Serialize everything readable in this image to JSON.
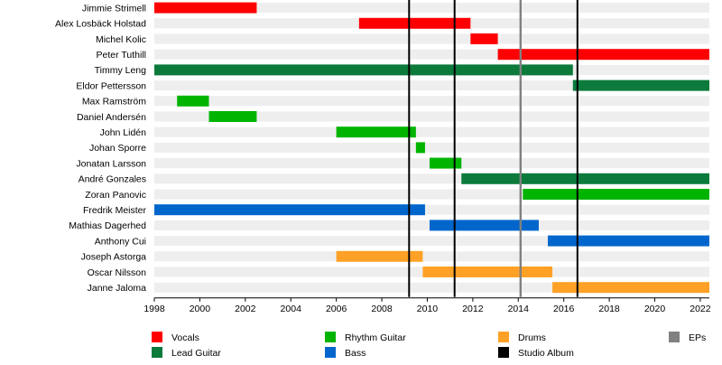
{
  "chart_data": {
    "type": "timeline",
    "title": "",
    "xlabel": "",
    "ylabel": "",
    "xlim": [
      1998,
      2022.4
    ],
    "grid": "alternating-row-stripes",
    "x_ticks": [
      1998,
      2000,
      2002,
      2004,
      2006,
      2008,
      2010,
      2012,
      2014,
      2016,
      2018,
      2020,
      2022
    ],
    "members": [
      "Jimmie Strimell",
      "Alex Losbäck Holstad",
      "Michel Kolic",
      "Peter Tuthill",
      "Timmy Leng",
      "Eldor Pettersson",
      "Max Ramström",
      "Daniel Andersén",
      "John Lidén",
      "Johan Sporre",
      "Jonatan Larsson",
      "André Gonzales",
      "Zoran Panovic",
      "Fredrik Meister",
      "Mathias Dagerhed",
      "Anthony Cui",
      "Joseph Astorga",
      "Oscar Nilsson",
      "Janne Jaloma"
    ],
    "roles": [
      {
        "key": "vocals",
        "name": "Vocals",
        "color": "#ff0000"
      },
      {
        "key": "lead",
        "name": "Lead Guitar",
        "color": "#0b7a3b"
      },
      {
        "key": "rhythm",
        "name": "Rhythm Guitar",
        "color": "#00b400"
      },
      {
        "key": "bass",
        "name": "Bass",
        "color": "#0066cc"
      },
      {
        "key": "drums",
        "name": "Drums",
        "color": "#ffa126"
      },
      {
        "key": "album",
        "name": "Studio Album",
        "color": "#000000"
      },
      {
        "key": "ep",
        "name": "EPs",
        "color": "#808080"
      }
    ],
    "bars": [
      {
        "member": "Jimmie Strimell",
        "role": "vocals",
        "start": 1998.0,
        "end": 2002.5
      },
      {
        "member": "Alex Losbäck Holstad",
        "role": "vocals",
        "start": 2007.0,
        "end": 2011.9
      },
      {
        "member": "Michel Kolic",
        "role": "vocals",
        "start": 2011.9,
        "end": 2013.1
      },
      {
        "member": "Peter Tuthill",
        "role": "vocals",
        "start": 2013.1,
        "end": 2022.4
      },
      {
        "member": "Timmy Leng",
        "role": "lead",
        "start": 1998.0,
        "end": 2016.4
      },
      {
        "member": "Eldor Pettersson",
        "role": "lead",
        "start": 2016.4,
        "end": 2022.4
      },
      {
        "member": "Max Ramström",
        "role": "rhythm",
        "start": 1999.0,
        "end": 2000.4
      },
      {
        "member": "Daniel Andersén",
        "role": "rhythm",
        "start": 2000.4,
        "end": 2002.5
      },
      {
        "member": "John Lidén",
        "role": "rhythm",
        "start": 2006.0,
        "end": 2009.5
      },
      {
        "member": "Johan Sporre",
        "role": "rhythm",
        "start": 2009.5,
        "end": 2009.9
      },
      {
        "member": "Jonatan Larsson",
        "role": "rhythm",
        "start": 2010.1,
        "end": 2011.5
      },
      {
        "member": "André Gonzales",
        "role": "lead",
        "start": 2011.5,
        "end": 2022.4
      },
      {
        "member": "Zoran Panovic",
        "role": "rhythm",
        "start": 2014.2,
        "end": 2022.4
      },
      {
        "member": "Fredrik Meister",
        "role": "bass",
        "start": 1998.0,
        "end": 2009.9
      },
      {
        "member": "Mathias Dagerhed",
        "role": "bass",
        "start": 2010.1,
        "end": 2014.9
      },
      {
        "member": "Anthony Cui",
        "role": "bass",
        "start": 2015.3,
        "end": 2022.4
      },
      {
        "member": "Joseph Astorga",
        "role": "drums",
        "start": 2006.0,
        "end": 2009.8
      },
      {
        "member": "Oscar Nilsson",
        "role": "drums",
        "start": 2009.8,
        "end": 2015.5
      },
      {
        "member": "Janne Jaloma",
        "role": "drums",
        "start": 2015.5,
        "end": 2022.4
      }
    ],
    "events": [
      {
        "type": "album",
        "x": 2009.2
      },
      {
        "type": "album",
        "x": 2011.2
      },
      {
        "type": "ep",
        "x": 2014.1
      },
      {
        "type": "album",
        "x": 2016.6
      }
    ]
  }
}
